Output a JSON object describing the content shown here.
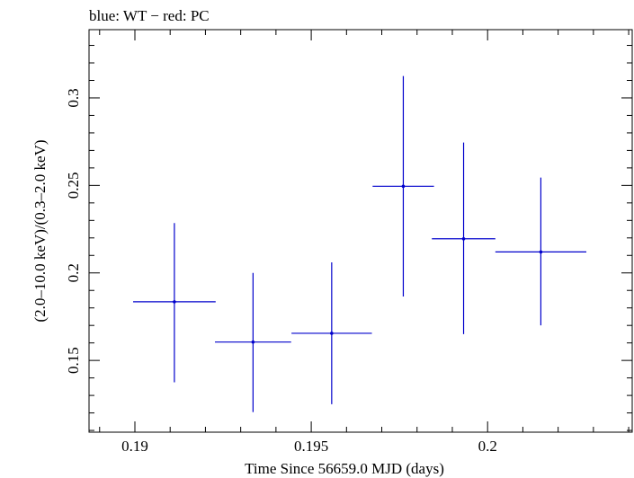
{
  "chart_data": {
    "type": "scatter",
    "title": "blue: WT − red: PC",
    "xlabel": "Time Since 56659.0 MJD (days)",
    "ylabel": "(2.0–10.0 keV)/(0.3–2.0 keV)",
    "xlim": [
      0.1887,
      0.2041
    ],
    "ylim": [
      0.109,
      0.339
    ],
    "xticks": [
      {
        "value": 0.19,
        "label": "0.19"
      },
      {
        "value": 0.195,
        "label": "0.195"
      },
      {
        "value": 0.2,
        "label": "0.2"
      }
    ],
    "yticks": [
      {
        "value": 0.15,
        "label": "0.15"
      },
      {
        "value": 0.2,
        "label": "0.2"
      },
      {
        "value": 0.25,
        "label": "0.25"
      },
      {
        "value": 0.3,
        "label": "0.3"
      }
    ],
    "grid": false,
    "series": [
      {
        "color": "#0000cc",
        "points": [
          {
            "x": 0.19112,
            "xerr_low": 0.00117,
            "xerr_high": 0.00117,
            "y": 0.1835,
            "yerr_low": 0.046,
            "yerr_high": 0.045
          },
          {
            "x": 0.19335,
            "xerr_low": 0.00108,
            "xerr_high": 0.00108,
            "y": 0.1605,
            "yerr_low": 0.04,
            "yerr_high": 0.0395
          },
          {
            "x": 0.19558,
            "xerr_low": 0.00114,
            "xerr_high": 0.00114,
            "y": 0.1655,
            "yerr_low": 0.0405,
            "yerr_high": 0.0405
          },
          {
            "x": 0.19761,
            "xerr_low": 0.00087,
            "xerr_high": 0.00087,
            "y": 0.2495,
            "yerr_low": 0.063,
            "yerr_high": 0.063
          },
          {
            "x": 0.19932,
            "xerr_low": 0.0009,
            "xerr_high": 0.0009,
            "y": 0.2195,
            "yerr_low": 0.0545,
            "yerr_high": 0.055
          },
          {
            "x": 0.20151,
            "xerr_low": 0.00129,
            "xerr_high": 0.00129,
            "y": 0.212,
            "yerr_low": 0.042,
            "yerr_high": 0.0425
          }
        ]
      }
    ]
  }
}
